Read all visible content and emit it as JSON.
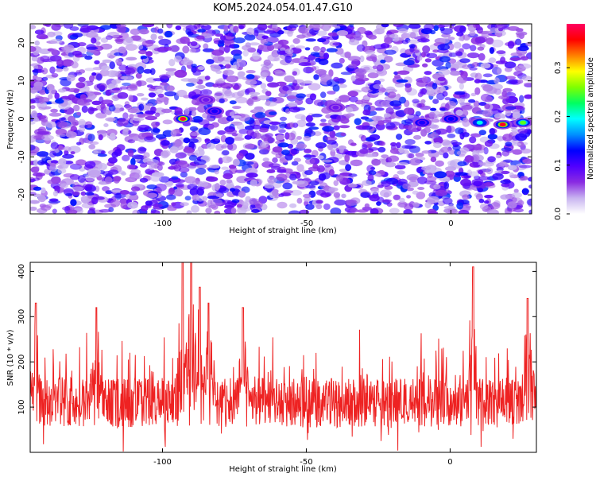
{
  "title": "KOM5.2024.054.01.47.G10",
  "chart_data": [
    {
      "type": "heatmap",
      "xlabel": "Height of straight line (km)",
      "ylabel": "Frequency (Hz)",
      "xlim": [
        -146,
        28
      ],
      "ylim": [
        -25,
        25
      ],
      "x_ticks": [
        -100,
        -50,
        0
      ],
      "y_ticks": [
        -20,
        -10,
        0,
        10,
        20
      ],
      "colorbar": {
        "label": "Normalized spectral amplitude",
        "range": [
          0.0,
          0.39
        ],
        "ticks": [
          0.0,
          0.1,
          0.2,
          0.3
        ],
        "tick_labels": [
          "0.0",
          "0.1",
          "0.2",
          "0.3"
        ],
        "colormap": [
          "#ffffff",
          "#c8b4f0",
          "#8a2be2",
          "#5000ff",
          "#0000ff",
          "#0090ff",
          "#00ffff",
          "#00ff60",
          "#80ff00",
          "#ffff00",
          "#ff8000",
          "#ff0000",
          "#ff0060"
        ]
      },
      "features": [
        {
          "x": -93,
          "y": 0,
          "amplitude": 0.38
        },
        {
          "x": -82,
          "y": 2,
          "amplitude": 0.12
        },
        {
          "x": -85,
          "y": 5,
          "amplitude": 0.08
        },
        {
          "x": -40,
          "y": 3,
          "amplitude": 0.08
        },
        {
          "x": -10,
          "y": -1,
          "amplitude": 0.12
        },
        {
          "x": 0,
          "y": 0,
          "amplitude": 0.13
        },
        {
          "x": 10,
          "y": -1,
          "amplitude": 0.2
        },
        {
          "x": 18,
          "y": -1.5,
          "amplitude": 0.37
        },
        {
          "x": 25,
          "y": -1,
          "amplitude": 0.25
        }
      ]
    },
    {
      "type": "line",
      "xlabel": "Height of straight line (km)",
      "ylabel": "SNR (10 * v/v)",
      "xlim": [
        -146,
        30
      ],
      "ylim": [
        0,
        420
      ],
      "x_ticks": [
        -100,
        -50,
        0
      ],
      "y_ticks": [
        100,
        200,
        300,
        400
      ],
      "color": "#ee2222",
      "typical_level": 110,
      "peaks": [
        {
          "x": -144,
          "y": 330
        },
        {
          "x": -123,
          "y": 320
        },
        {
          "x": -93,
          "y": 420
        },
        {
          "x": -90,
          "y": 420
        },
        {
          "x": -87,
          "y": 365
        },
        {
          "x": -84,
          "y": 330
        },
        {
          "x": -72,
          "y": 320
        },
        {
          "x": 8,
          "y": 410
        },
        {
          "x": 27,
          "y": 340
        }
      ]
    }
  ]
}
